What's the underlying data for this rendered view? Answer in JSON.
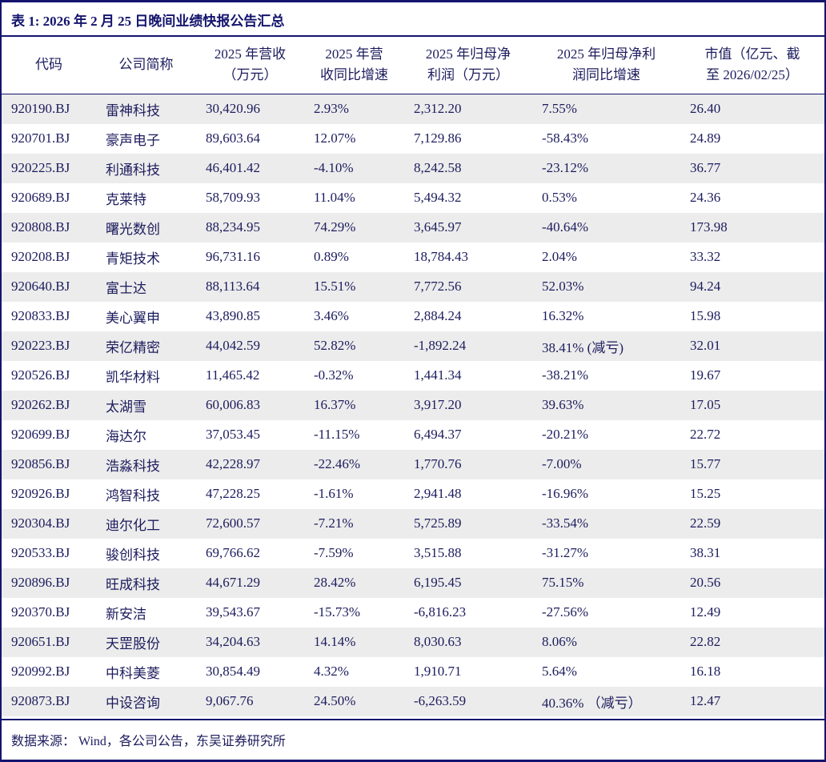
{
  "title": "表 1:  2026 年 2 月 25 日晚间业绩快报公告汇总",
  "footer": "数据来源： Wind，各公司公告，东吴证券研究所",
  "colors": {
    "accent_navy": "#14146e",
    "text": "#1c1c5e",
    "row_stripe": "#ececec",
    "background": "#ffffff"
  },
  "table": {
    "columns": [
      {
        "key": "code",
        "line1": "代码",
        "line2": ""
      },
      {
        "key": "name",
        "line1": "公司简称",
        "line2": ""
      },
      {
        "key": "revenue",
        "line1": "2025 年营收",
        "line2": "（万元）"
      },
      {
        "key": "revenue_growth",
        "line1": "2025 年营",
        "line2": "收同比增速"
      },
      {
        "key": "net_profit",
        "line1": "2025 年归母净",
        "line2": "利润（万元）"
      },
      {
        "key": "net_profit_growth",
        "line1": "2025 年归母净利",
        "line2": "润同比增速"
      },
      {
        "key": "market_cap",
        "line1": "市值（亿元、截",
        "line2": "至 2026/02/25）"
      }
    ],
    "rows": [
      [
        "920190.BJ",
        "雷神科技",
        "30,420.96",
        "2.93%",
        "2,312.20",
        "7.55%",
        "26.40"
      ],
      [
        "920701.BJ",
        "豪声电子",
        "89,603.64",
        "12.07%",
        "7,129.86",
        "-58.43%",
        "24.89"
      ],
      [
        "920225.BJ",
        "利通科技",
        "46,401.42",
        "-4.10%",
        "8,242.58",
        "-23.12%",
        "36.77"
      ],
      [
        "920689.BJ",
        "克莱特",
        "58,709.93",
        "11.04%",
        "5,494.32",
        "0.53%",
        "24.36"
      ],
      [
        "920808.BJ",
        "曙光数创",
        "88,234.95",
        "74.29%",
        "3,645.97",
        "-40.64%",
        "173.98"
      ],
      [
        "920208.BJ",
        "青矩技术",
        "96,731.16",
        "0.89%",
        "18,784.43",
        "2.04%",
        "33.32"
      ],
      [
        "920640.BJ",
        "富士达",
        "88,113.64",
        "15.51%",
        "7,772.56",
        "52.03%",
        "94.24"
      ],
      [
        "920833.BJ",
        "美心翼申",
        "43,890.85",
        "3.46%",
        "2,884.24",
        "16.32%",
        "15.98"
      ],
      [
        "920223.BJ",
        "荣亿精密",
        "44,042.59",
        "52.82%",
        "-1,892.24",
        "38.41% (减亏)",
        "32.01"
      ],
      [
        "920526.BJ",
        "凯华材料",
        "11,465.42",
        "-0.32%",
        "1,441.34",
        "-38.21%",
        "19.67"
      ],
      [
        "920262.BJ",
        "太湖雪",
        "60,006.83",
        "16.37%",
        "3,917.20",
        "39.63%",
        "17.05"
      ],
      [
        "920699.BJ",
        "海达尔",
        "37,053.45",
        "-11.15%",
        "6,494.37",
        "-20.21%",
        "22.72"
      ],
      [
        "920856.BJ",
        "浩淼科技",
        "42,228.97",
        "-22.46%",
        "1,770.76",
        "-7.00%",
        "15.77"
      ],
      [
        "920926.BJ",
        "鸿智科技",
        "47,228.25",
        "-1.61%",
        "2,941.48",
        "-16.96%",
        "15.25"
      ],
      [
        "920304.BJ",
        "迪尔化工",
        "72,600.57",
        "-7.21%",
        "5,725.89",
        "-33.54%",
        "22.59"
      ],
      [
        "920533.BJ",
        "骏创科技",
        "69,766.62",
        "-7.59%",
        "3,515.88",
        "-31.27%",
        "38.31"
      ],
      [
        "920896.BJ",
        "旺成科技",
        "44,671.29",
        "28.42%",
        "6,195.45",
        "75.15%",
        "20.56"
      ],
      [
        "920370.BJ",
        "新安洁",
        "39,543.67",
        "-15.73%",
        "-6,816.23",
        "-27.56%",
        "12.49"
      ],
      [
        "920651.BJ",
        "天罡股份",
        "34,204.63",
        "14.14%",
        "8,030.63",
        "8.06%",
        "22.82"
      ],
      [
        "920992.BJ",
        "中科美菱",
        "30,854.49",
        "4.32%",
        "1,910.71",
        "5.64%",
        "16.18"
      ],
      [
        "920873.BJ",
        "中设咨询",
        "9,067.76",
        "24.50%",
        "-6,263.59",
        "40.36% （减亏）",
        "12.47"
      ]
    ]
  }
}
